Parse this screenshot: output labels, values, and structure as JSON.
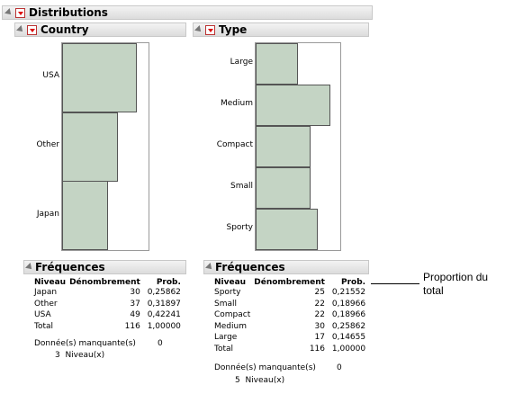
{
  "distributions": {
    "title": "Distributions"
  },
  "country": {
    "title": "Country",
    "categories": [
      "USA",
      "Other",
      "Japan"
    ],
    "freq": {
      "title": "Fréquences",
      "headers": [
        "Niveau",
        "Dénombrement",
        "Prob."
      ],
      "rows": [
        [
          "Japan",
          "30",
          "0,25862"
        ],
        [
          "Other",
          "37",
          "0,31897"
        ],
        [
          "USA",
          "49",
          "0,42241"
        ],
        [
          "Total",
          "116",
          "1,00000"
        ]
      ],
      "missing_label": "Donnée(s) manquante(s)",
      "missing_value": "0",
      "levels": "3  Niveau(x)"
    }
  },
  "type": {
    "title": "Type",
    "categories": [
      "Large",
      "Medium",
      "Compact",
      "Small",
      "Sporty"
    ],
    "freq": {
      "title": "Fréquences",
      "headers": [
        "Niveau",
        "Dénombrement",
        "Prob."
      ],
      "rows": [
        [
          "Sporty",
          "25",
          "0,21552"
        ],
        [
          "Small",
          "22",
          "0,18966"
        ],
        [
          "Compact",
          "22",
          "0,18966"
        ],
        [
          "Medium",
          "30",
          "0,25862"
        ],
        [
          "Large",
          "17",
          "0,14655"
        ],
        [
          "Total",
          "116",
          "1,00000"
        ]
      ],
      "missing_label": "Donnée(s) manquante(s)",
      "missing_value": "0",
      "levels": "5  Niveau(x)"
    }
  },
  "callout": {
    "line1": "Proportion du",
    "line2": "total"
  },
  "chart_data": [
    {
      "type": "bar",
      "orientation": "horizontal",
      "title": "Country",
      "categories": [
        "USA",
        "Other",
        "Japan"
      ],
      "values": [
        49,
        37,
        30
      ]
    },
    {
      "type": "bar",
      "orientation": "horizontal",
      "title": "Type",
      "categories": [
        "Large",
        "Medium",
        "Compact",
        "Small",
        "Sporty"
      ],
      "values": [
        17,
        30,
        22,
        22,
        25
      ]
    }
  ]
}
